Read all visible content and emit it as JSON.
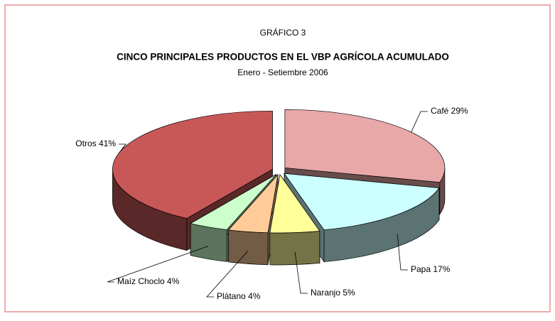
{
  "chart_data": {
    "type": "pie",
    "kicker": "GRÁFICO 3",
    "title": "CINCO PRINCIPALES PRODUCTOS EN EL VBP AGRÍCOLA ACUMULADO",
    "subtitle": "Enero - Setiembre 2006",
    "values": [
      29,
      17,
      5,
      4,
      4,
      41
    ],
    "value_labels": [
      "Café 29%",
      "Papa 17%",
      "Naranjo 5%",
      "Plátano 4%",
      "Maíz Choclo 4%",
      "Otros 41%"
    ],
    "colors": [
      "#e8a8a8",
      "#ccffff",
      "#ffff99",
      "#ffcc99",
      "#ccffcc",
      "#c85858"
    ]
  }
}
